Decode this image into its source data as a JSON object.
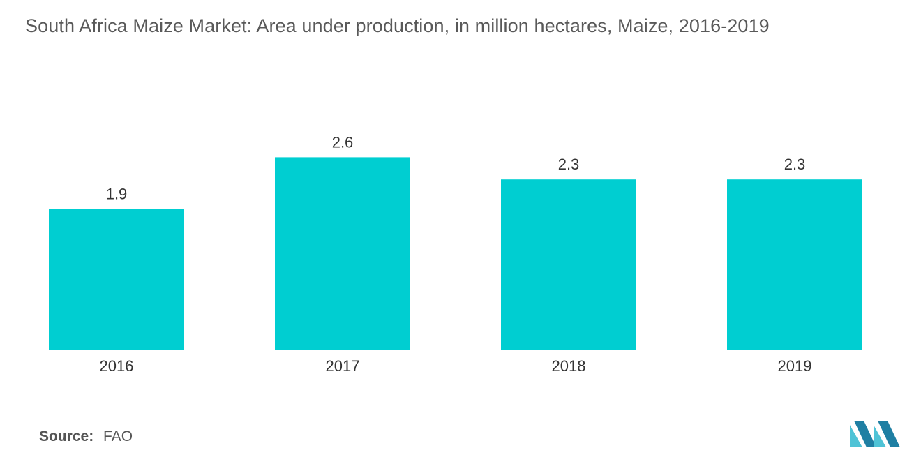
{
  "chart_data": {
    "type": "bar",
    "title": "South Africa Maize Market: Area under production, in million hectares, Maize, 2016-2019",
    "categories": [
      "2016",
      "2017",
      "2018",
      "2019"
    ],
    "values": [
      1.9,
      2.6,
      2.3,
      2.3
    ],
    "value_labels": [
      "1.9",
      "2.6",
      "2.3",
      "2.3"
    ],
    "xlabel": "",
    "ylabel": "",
    "ylim": [
      0,
      2.8
    ],
    "grid": false,
    "legend": "none",
    "bar_color": "#00CED1"
  },
  "source": {
    "label": "Source:",
    "value": "FAO"
  },
  "colors": {
    "title": "#595959",
    "bar": "#00CED1",
    "text": "#333333",
    "logo_dark": "#1f7fa3",
    "logo_light": "#4fc3d6"
  },
  "logo": {
    "icon": "mordor-intelligence-logo"
  }
}
